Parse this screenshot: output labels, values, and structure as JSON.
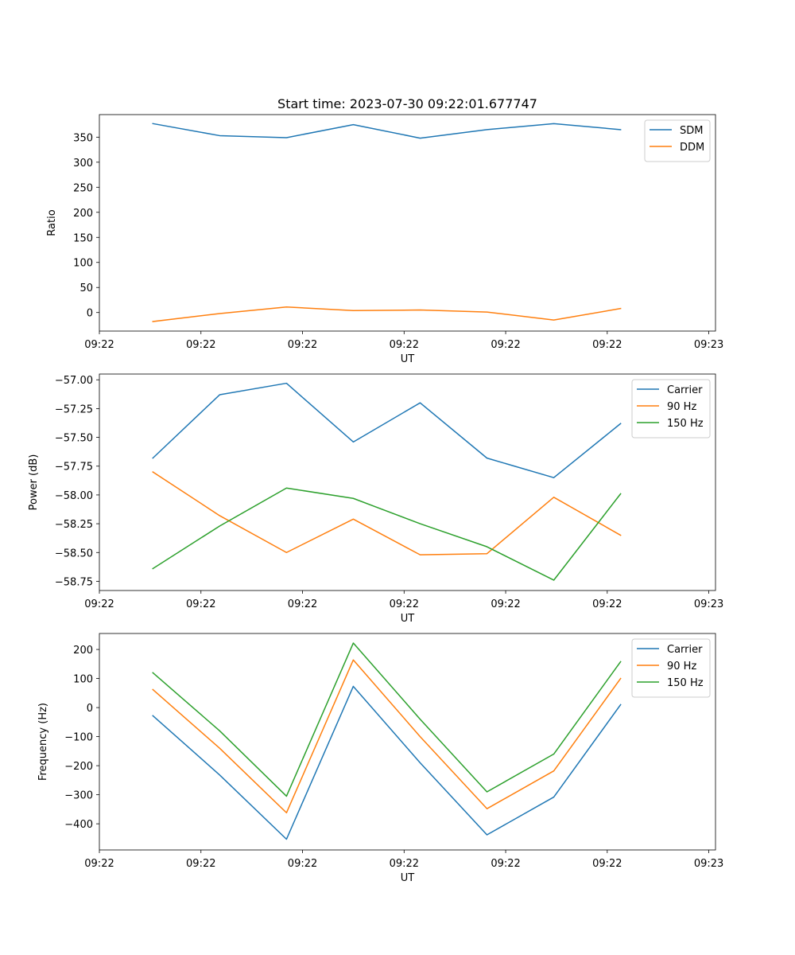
{
  "chart_data": [
    {
      "type": "line",
      "title": "Start time: 2023-07-30 09:22:01.677747",
      "xlabel": "UT",
      "ylabel": "Ratio",
      "x": [
        1,
        2,
        3,
        4,
        5,
        6,
        7,
        8
      ],
      "xlim": [
        0.2,
        9.42
      ],
      "x_ticks": [
        {
          "x": 0.2,
          "label": "09:22"
        },
        {
          "x": 1.72,
          "label": "09:22"
        },
        {
          "x": 3.24,
          "label": "09:22"
        },
        {
          "x": 4.76,
          "label": "09:22"
        },
        {
          "x": 6.28,
          "label": "09:22"
        },
        {
          "x": 7.8,
          "label": "09:22"
        },
        {
          "x": 9.32,
          "label": "09:23"
        }
      ],
      "ylim": [
        -37,
        395
      ],
      "y_ticks": [
        {
          "y": 0,
          "label": "0"
        },
        {
          "y": 50,
          "label": "50"
        },
        {
          "y": 100,
          "label": "100"
        },
        {
          "y": 150,
          "label": "150"
        },
        {
          "y": 200,
          "label": "200"
        },
        {
          "y": 250,
          "label": "250"
        },
        {
          "y": 300,
          "label": "300"
        },
        {
          "y": 350,
          "label": "350"
        }
      ],
      "legend": "upper right",
      "series": [
        {
          "name": "SDM",
          "color": "#1f77b4",
          "values": [
            377,
            353,
            349,
            375,
            348,
            365,
            377,
            365
          ]
        },
        {
          "name": "DDM",
          "color": "#ff7f0e",
          "values": [
            -18,
            -2,
            11,
            4,
            5,
            1,
            -15,
            8
          ]
        }
      ]
    },
    {
      "type": "line",
      "title": "",
      "xlabel": "UT",
      "ylabel": "Power (dB)",
      "x": [
        1,
        2,
        3,
        4,
        5,
        6,
        7,
        8
      ],
      "xlim": [
        0.2,
        9.42
      ],
      "x_ticks": [
        {
          "x": 0.2,
          "label": "09:22"
        },
        {
          "x": 1.72,
          "label": "09:22"
        },
        {
          "x": 3.24,
          "label": "09:22"
        },
        {
          "x": 4.76,
          "label": "09:22"
        },
        {
          "x": 6.28,
          "label": "09:22"
        },
        {
          "x": 7.8,
          "label": "09:22"
        },
        {
          "x": 9.32,
          "label": "09:23"
        }
      ],
      "ylim": [
        -58.83,
        -56.95
      ],
      "y_ticks": [
        {
          "y": -58.75,
          "label": "−58.75"
        },
        {
          "y": -58.5,
          "label": "−58.50"
        },
        {
          "y": -58.25,
          "label": "−58.25"
        },
        {
          "y": -58.0,
          "label": "−58.00"
        },
        {
          "y": -57.75,
          "label": "−57.75"
        },
        {
          "y": -57.5,
          "label": "−57.50"
        },
        {
          "y": -57.25,
          "label": "−57.25"
        },
        {
          "y": -57.0,
          "label": "−57.00"
        }
      ],
      "legend": "upper right",
      "series": [
        {
          "name": "Carrier",
          "color": "#1f77b4",
          "values": [
            -57.68,
            -57.13,
            -57.03,
            -57.54,
            -57.2,
            -57.68,
            -57.85,
            -57.38
          ]
        },
        {
          "name": "90 Hz",
          "color": "#ff7f0e",
          "values": [
            -57.8,
            -58.18,
            -58.5,
            -58.21,
            -58.52,
            -58.51,
            -58.02,
            -58.35
          ]
        },
        {
          "name": "150 Hz",
          "color": "#2ca02c",
          "values": [
            -58.64,
            -58.27,
            -57.94,
            -58.03,
            -58.25,
            -58.45,
            -58.74,
            -57.99
          ]
        }
      ]
    },
    {
      "type": "line",
      "title": "",
      "xlabel": "UT",
      "ylabel": "Frequency (Hz)",
      "x": [
        1,
        2,
        3,
        4,
        5,
        6,
        7,
        8
      ],
      "xlim": [
        0.2,
        9.42
      ],
      "x_ticks": [
        {
          "x": 0.2,
          "label": "09:22"
        },
        {
          "x": 1.72,
          "label": "09:22"
        },
        {
          "x": 3.24,
          "label": "09:22"
        },
        {
          "x": 4.76,
          "label": "09:22"
        },
        {
          "x": 6.28,
          "label": "09:22"
        },
        {
          "x": 7.8,
          "label": "09:22"
        },
        {
          "x": 9.32,
          "label": "09:23"
        }
      ],
      "ylim": [
        -490,
        255
      ],
      "y_ticks": [
        {
          "y": -400,
          "label": "−400"
        },
        {
          "y": -300,
          "label": "−300"
        },
        {
          "y": -200,
          "label": "−200"
        },
        {
          "y": -100,
          "label": "−100"
        },
        {
          "y": 0,
          "label": "0"
        },
        {
          "y": 100,
          "label": "100"
        },
        {
          "y": 200,
          "label": "200"
        }
      ],
      "legend": "upper right",
      "series": [
        {
          "name": "Carrier",
          "color": "#1f77b4",
          "values": [
            -28,
            -232,
            -453,
            73,
            -190,
            -438,
            -308,
            10
          ]
        },
        {
          "name": "90 Hz",
          "color": "#ff7f0e",
          "values": [
            62,
            -140,
            -362,
            164,
            -100,
            -348,
            -218,
            100
          ]
        },
        {
          "name": "150 Hz",
          "color": "#2ca02c",
          "values": [
            120,
            -80,
            -305,
            222,
            -40,
            -290,
            -160,
            158
          ]
        }
      ]
    }
  ]
}
